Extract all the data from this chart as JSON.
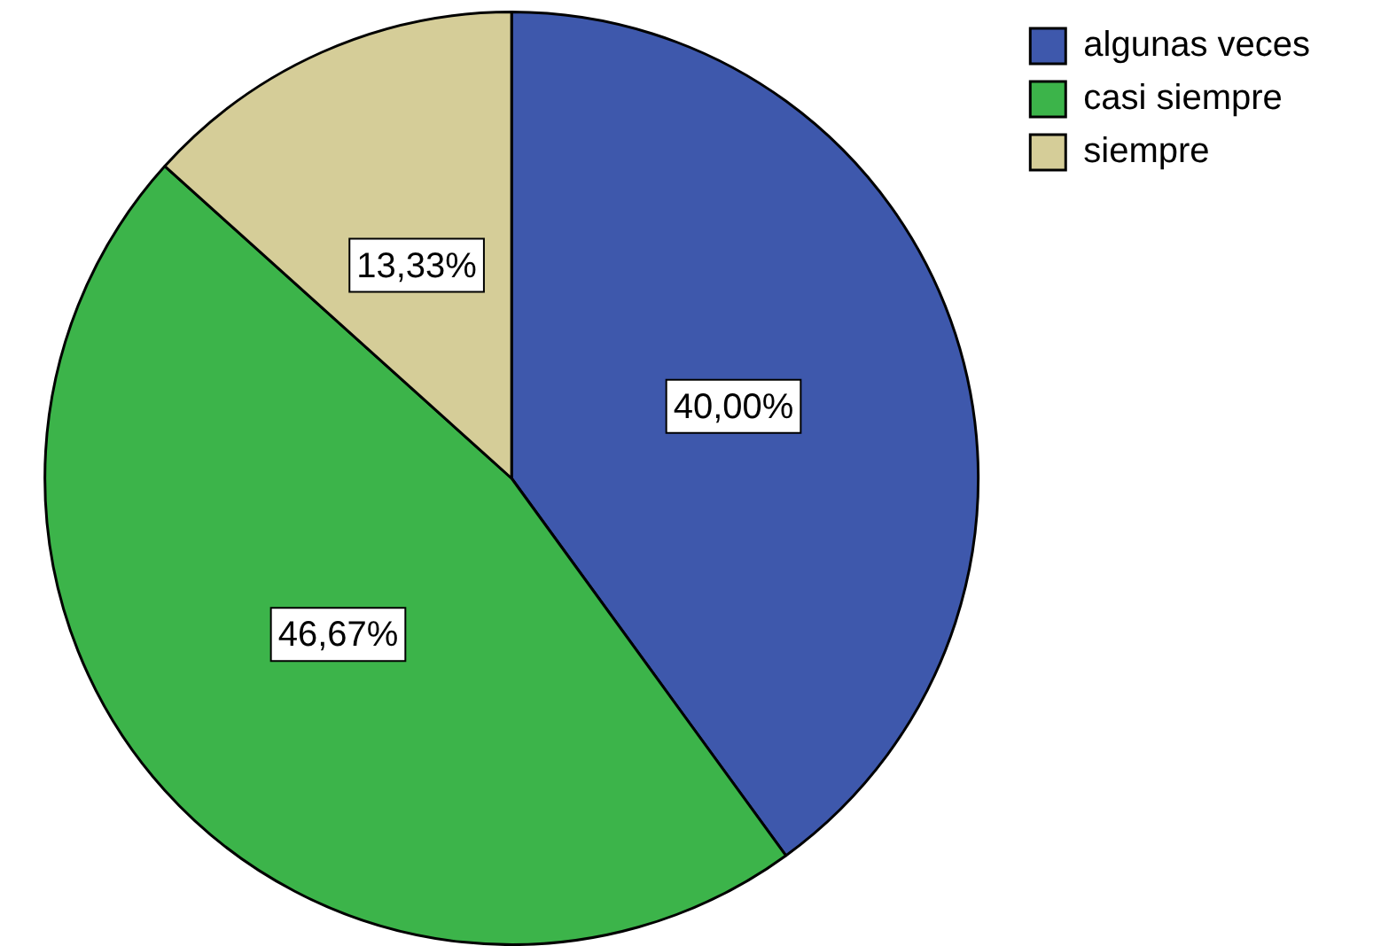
{
  "chart_data": {
    "type": "pie",
    "categories": [
      "algunas veces",
      "casi siempre",
      "siempre"
    ],
    "values": [
      40.0,
      46.67,
      13.33
    ],
    "colors": [
      "#3e58ac",
      "#3cb44a",
      "#d5cd98"
    ],
    "value_labels": [
      "40,00%",
      "46,67%",
      "13,33%"
    ],
    "legend": "top right"
  }
}
